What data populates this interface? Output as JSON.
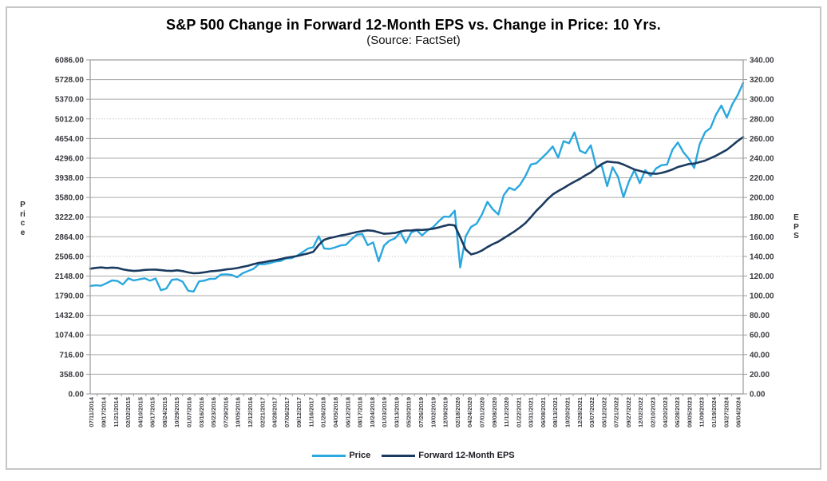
{
  "title": "S&P 500 Change in Forward 12-Month EPS vs. Change in Price: 10 Yrs.",
  "subtitle": "(Source: FactSet)",
  "chart_data": {
    "type": "line",
    "title": "S&P 500 Change in Forward 12-Month EPS vs. Change in Price: 10 Yrs.",
    "subtitle": "(Source: FactSet)",
    "ylabel_left": "Price",
    "ylabel_right": "EPS",
    "legend_position": "bottom",
    "grid": "horizontal",
    "y_left": {
      "min": 0,
      "max": 6086,
      "step": 358,
      "tick_labels": [
        "6086.00",
        "5728.00",
        "5370.00",
        "5012.00",
        "4654.00",
        "4296.00",
        "3938.00",
        "3580.00",
        "3222.00",
        "2864.00",
        "2506.00",
        "2148.00",
        "1790.00",
        "1432.00",
        "1074.00",
        "716.00",
        "358.00",
        "0.00"
      ]
    },
    "y_right": {
      "min": 0,
      "max": 340,
      "step": 20,
      "tick_labels": [
        "340.00",
        "320.00",
        "300.00",
        "280.00",
        "260.00",
        "240.00",
        "220.00",
        "200.00",
        "180.00",
        "160.00",
        "140.00",
        "120.00",
        "100.00",
        "80.00",
        "60.00",
        "40.00",
        "20.00",
        "0.00"
      ]
    },
    "dotted_gridline_indices_from_top": [
      3,
      10
    ],
    "x_tick_labels": [
      "07/11/2014",
      "09/17/2014",
      "11/21/2014",
      "02/02/2015",
      "04/10/2015",
      "06/17/2015",
      "08/24/2015",
      "10/29/2015",
      "01/07/2016",
      "03/16/2016",
      "05/23/2016",
      "07/29/2016",
      "10/05/2016",
      "12/12/2016",
      "02/21/2017",
      "04/28/2017",
      "07/06/2017",
      "09/12/2017",
      "11/16/2017",
      "01/26/2018",
      "04/05/2018",
      "06/12/2018",
      "08/17/2018",
      "10/24/2018",
      "01/03/2019",
      "03/13/2019",
      "05/20/2019",
      "07/26/2019",
      "10/02/2019",
      "12/09/2019",
      "02/18/2020",
      "04/24/2020",
      "07/01/2020",
      "09/08/2020",
      "11/12/2020",
      "01/22/2021",
      "03/31/2021",
      "06/08/2021",
      "08/13/2021",
      "10/20/2021",
      "12/28/2021",
      "03/07/2022",
      "05/12/2022",
      "07/21/2022",
      "09/27/2022",
      "12/02/2022",
      "02/10/2023",
      "04/20/2023",
      "06/28/2023",
      "09/05/2023",
      "11/09/2023",
      "01/19/2024",
      "03/27/2024",
      "06/04/2024"
    ],
    "series": [
      {
        "name": "Price",
        "axis": "left",
        "color": "#29A7DF",
        "values": [
          1967,
          1978,
          1972,
          2018,
          2068,
          2059,
          1995,
          2105,
          2068,
          2086,
          2107,
          2063,
          2104,
          1890,
          1920,
          2079,
          2090,
          2044,
          1880,
          1865,
          2050,
          2065,
          2096,
          2099,
          2174,
          2180,
          2168,
          2126,
          2198,
          2239,
          2279,
          2364,
          2363,
          2384,
          2412,
          2423,
          2470,
          2472,
          2519,
          2581,
          2648,
          2674,
          2873,
          2650,
          2641,
          2670,
          2705,
          2718,
          2816,
          2902,
          2914,
          2711,
          2760,
          2416,
          2704,
          2793,
          2834,
          2946,
          2752,
          2942,
          2980,
          2889,
          2979,
          3038,
          3141,
          3231,
          3226,
          3338,
          2305,
          2874,
          3044,
          3100,
          3271,
          3500,
          3363,
          3270,
          3622,
          3756,
          3714,
          3811,
          3973,
          4181,
          4204,
          4298,
          4395,
          4509,
          4307,
          4605,
          4567,
          4766,
          4432,
          4385,
          4530,
          4132,
          4158,
          3785,
          4130,
          3955,
          3586,
          3872,
          4080,
          3840,
          4077,
          3970,
          4109,
          4169,
          4180,
          4450,
          4582,
          4406,
          4288,
          4117,
          4550,
          4770,
          4846,
          5088,
          5254,
          5036,
          5278,
          5447,
          5667
        ]
      },
      {
        "name": "Forward 12-Month EPS",
        "axis": "right",
        "color": "#1B3A5F",
        "values": [
          127.5,
          128.3,
          128.8,
          128.2,
          128.6,
          128.3,
          126.8,
          125.8,
          125.2,
          125.5,
          126.2,
          126.5,
          126.6,
          126.0,
          125.4,
          125.2,
          125.8,
          125.0,
          123.7,
          122.8,
          123.1,
          123.8,
          124.8,
          125.2,
          125.8,
          126.7,
          127.3,
          128.1,
          129.3,
          130.5,
          132.1,
          133.4,
          134.2,
          135.3,
          136.2,
          137.2,
          138.6,
          139.5,
          140.3,
          141.7,
          143.0,
          144.7,
          151.6,
          156.9,
          158.7,
          159.8,
          161.2,
          162.2,
          163.5,
          164.8,
          165.7,
          166.5,
          166.0,
          164.5,
          163.0,
          163.3,
          163.8,
          165.4,
          166.3,
          166.4,
          167.0,
          166.9,
          167.4,
          168.1,
          169.4,
          171.0,
          172.3,
          171.5,
          159.5,
          147.0,
          142.0,
          143.5,
          146.0,
          149.5,
          152.5,
          155.0,
          158.5,
          162.0,
          165.5,
          169.5,
          174.0,
          180.0,
          186.5,
          192.0,
          198.0,
          203.0,
          206.5,
          209.5,
          213.0,
          216.0,
          219.0,
          222.5,
          225.5,
          230.0,
          234.0,
          236.5,
          236.0,
          235.5,
          233.5,
          231.0,
          228.5,
          227.0,
          225.5,
          224.5,
          224.0,
          225.0,
          226.5,
          228.5,
          231.0,
          232.5,
          234.0,
          234.5,
          236.0,
          237.5,
          240.0,
          242.5,
          245.5,
          248.5,
          253.0,
          257.5,
          261.5
        ]
      }
    ]
  }
}
